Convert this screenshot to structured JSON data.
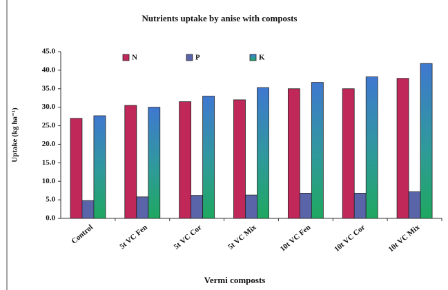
{
  "chart_data": {
    "type": "bar",
    "title": "Nutrients uptake by anise with composts",
    "xlabel": "Vermi composts",
    "ylabel": "Uptake (kg ha⁻¹)",
    "categories": [
      "Control",
      "5t VC Fen",
      "5t VC Cor",
      "5t VC Mix",
      "10t VC Fen",
      "10t VC Cor",
      "10t VC Mix"
    ],
    "series": [
      {
        "name": "N",
        "color": "#c0285a",
        "values": [
          27.0,
          30.5,
          31.5,
          32.0,
          35.0,
          35.0,
          37.8
        ]
      },
      {
        "name": "P",
        "color": "#5a64a8",
        "values": [
          4.8,
          5.8,
          6.2,
          6.3,
          6.8,
          6.8,
          7.2
        ]
      },
      {
        "name": "K",
        "color": "#3f78d0",
        "values": [
          27.7,
          30.0,
          33.0,
          35.3,
          36.7,
          38.2,
          41.8
        ]
      }
    ],
    "ylim": [
      0,
      45
    ],
    "yticks": [
      {
        "value": 0,
        "label": "0.0"
      },
      {
        "value": 5,
        "label": "5.0"
      },
      {
        "value": 10,
        "label": "10.0"
      },
      {
        "value": 15,
        "label": "15.0"
      },
      {
        "value": 20,
        "label": "20.0"
      },
      {
        "value": 25,
        "label": "25.0"
      },
      {
        "value": 30,
        "label": "30.0"
      },
      {
        "value": 35,
        "label": "35.0"
      },
      {
        "value": 40,
        "label": "40.0"
      },
      {
        "value": 45,
        "label": "45.0"
      }
    ],
    "legend": "top"
  }
}
